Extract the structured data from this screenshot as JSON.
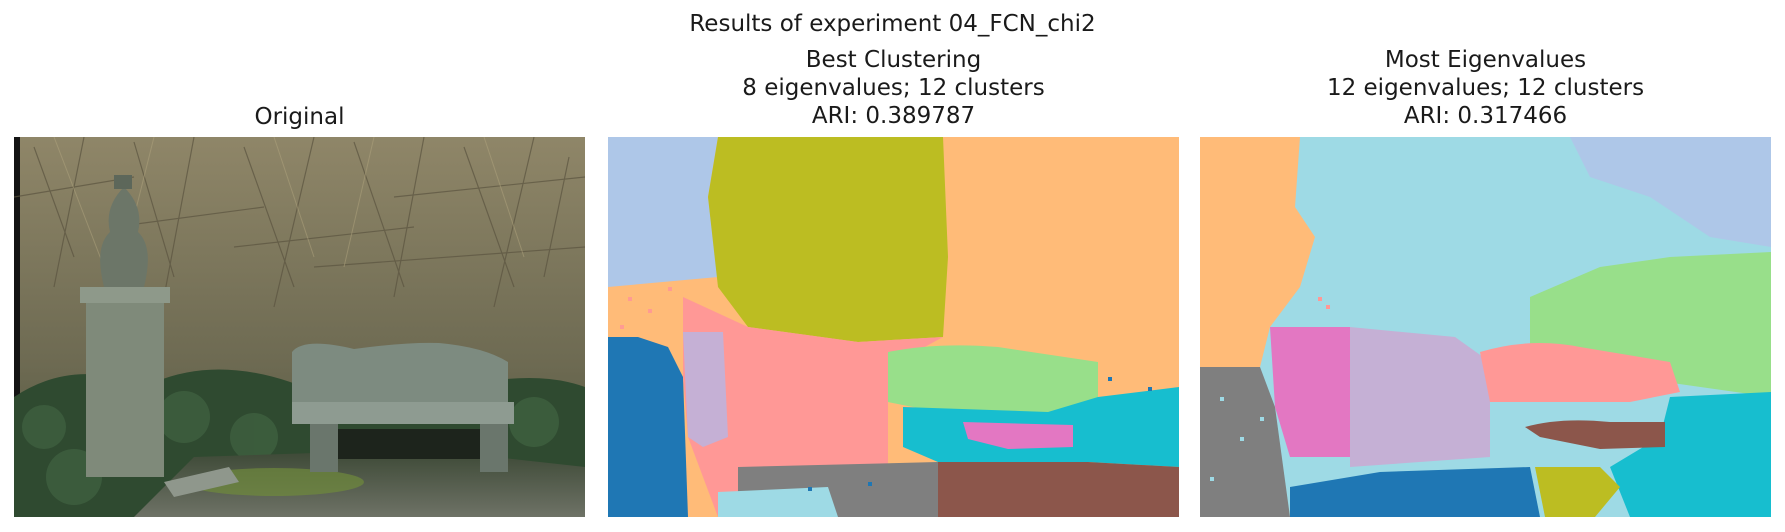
{
  "figure": {
    "suptitle": "Results of experiment 04_FCN_chi2"
  },
  "panels": [
    {
      "title_lines": [
        "Original"
      ],
      "image_description": "photo"
    },
    {
      "title_lines": [
        "Best Clustering",
        "8 eigenvalues; 12 clusters",
        "ARI: 0.389787"
      ],
      "image_description": "cluster map"
    },
    {
      "title_lines": [
        "Most Eigenvalues",
        "12 eigenvalues; 12 clusters",
        "ARI: 0.317466"
      ],
      "image_description": "cluster map"
    }
  ],
  "palette": {
    "blue": "#1f77b4",
    "light_blue": "#aec7e8",
    "olive": "#bcbd22",
    "orange": "#ffbb78",
    "salmon": "#ff9896",
    "lavender": "#c5b0d5",
    "green": "#98df8a",
    "cyan": "#17becf",
    "pink": "#e377c2",
    "brown": "#8c564b",
    "gray": "#7f7f7f",
    "light_cyan": "#9edae5"
  }
}
